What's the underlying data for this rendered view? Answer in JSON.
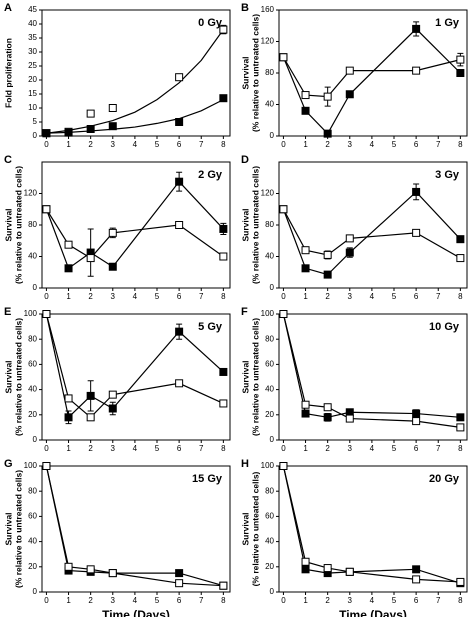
{
  "chart_data": [
    {
      "type": "line",
      "panel_label": "A",
      "annotation": "0 Gy",
      "ylabel": [
        "Fold proliferation"
      ],
      "x": [
        0,
        1,
        2,
        3,
        6,
        8
      ],
      "xlim": [
        -0.2,
        8.3
      ],
      "xticks": [
        0,
        1,
        2,
        3,
        4,
        5,
        6,
        7,
        8
      ],
      "ylim": [
        0,
        45
      ],
      "yticks": [
        0,
        5,
        10,
        15,
        20,
        25,
        30,
        35,
        40,
        45
      ],
      "series": [
        {
          "color": "#000000",
          "marker": "open",
          "line": false,
          "values": [
            1,
            1.5,
            8,
            10,
            21,
            38
          ],
          "errors": [
            null,
            null,
            null,
            null,
            null,
            1.5
          ]
        },
        {
          "color": "#000000",
          "marker": "filled",
          "line": false,
          "values": [
            1,
            1.2,
            2.5,
            3.5,
            5,
            13.5
          ],
          "errors": [
            null,
            null,
            null,
            null,
            null,
            null
          ]
        },
        {
          "color": "#000000",
          "marker": "none",
          "line": true,
          "x": [
            0,
            1,
            2,
            3,
            4,
            5,
            6,
            7,
            8
          ],
          "values": [
            1,
            2,
            3.5,
            5.5,
            8.5,
            13,
            19,
            27,
            38
          ]
        },
        {
          "color": "#000000",
          "marker": "none",
          "line": true,
          "x": [
            0,
            1,
            2,
            3,
            4,
            5,
            6,
            7,
            8
          ],
          "values": [
            1,
            1.3,
            1.8,
            2.4,
            3.2,
            4.5,
            6.2,
            9,
            13
          ]
        }
      ]
    },
    {
      "type": "line",
      "panel_label": "B",
      "annotation": "1 Gy",
      "ylabel": [
        "Survival",
        "(% relative to untreated cells)"
      ],
      "x": [
        0,
        1,
        2,
        3,
        6,
        8
      ],
      "xlim": [
        -0.2,
        8.3
      ],
      "xticks": [
        0,
        1,
        2,
        3,
        4,
        5,
        6,
        7,
        8
      ],
      "ylim": [
        0,
        160
      ],
      "yticks": [
        0,
        40,
        80,
        120,
        160
      ],
      "series": [
        {
          "color": "#000000",
          "marker": "filled",
          "line": true,
          "values": [
            100,
            32,
            3,
            53,
            136,
            80
          ],
          "errors": [
            null,
            null,
            null,
            null,
            9,
            null
          ]
        },
        {
          "color": "#000000",
          "marker": "open",
          "line": true,
          "values": [
            100,
            52,
            50,
            83,
            83,
            97
          ],
          "errors": [
            null,
            null,
            12,
            null,
            null,
            8
          ]
        }
      ]
    },
    {
      "type": "line",
      "panel_label": "C",
      "annotation": "2 Gy",
      "ylabel": [
        "Survival",
        "(% relative to untreated cells)"
      ],
      "x": [
        0,
        1,
        2,
        3,
        6,
        8
      ],
      "xlim": [
        -0.2,
        8.3
      ],
      "xticks": [
        0,
        1,
        2,
        3,
        4,
        5,
        6,
        7,
        8
      ],
      "ylim": [
        0,
        160
      ],
      "yticks": [
        0,
        40,
        80,
        120
      ],
      "series": [
        {
          "color": "#000000",
          "marker": "filled",
          "line": true,
          "values": [
            100,
            25,
            45,
            27,
            135,
            75
          ],
          "errors": [
            null,
            null,
            30,
            null,
            12,
            7
          ]
        },
        {
          "color": "#000000",
          "marker": "open",
          "line": true,
          "values": [
            100,
            55,
            38,
            70,
            80,
            40
          ],
          "errors": [
            null,
            null,
            null,
            6,
            null,
            null
          ]
        }
      ]
    },
    {
      "type": "line",
      "panel_label": "D",
      "annotation": "3 Gy",
      "ylabel": [
        "Survival",
        "(% relative to untreated cells)"
      ],
      "x": [
        0,
        1,
        2,
        3,
        6,
        8
      ],
      "xlim": [
        -0.2,
        8.3
      ],
      "xticks": [
        0,
        1,
        2,
        3,
        4,
        5,
        6,
        7,
        8
      ],
      "ylim": [
        0,
        160
      ],
      "yticks": [
        0,
        40,
        80,
        120
      ],
      "series": [
        {
          "color": "#000000",
          "marker": "filled",
          "line": true,
          "values": [
            100,
            25,
            17,
            45,
            122,
            62
          ],
          "errors": [
            null,
            null,
            null,
            6,
            10,
            null
          ]
        },
        {
          "color": "#000000",
          "marker": "open",
          "line": true,
          "values": [
            100,
            48,
            42,
            63,
            70,
            38
          ],
          "errors": [
            null,
            null,
            5,
            null,
            null,
            null
          ]
        }
      ]
    },
    {
      "type": "line",
      "panel_label": "E",
      "annotation": "5 Gy",
      "ylabel": [
        "Survival",
        "(% relative to untreated cells)"
      ],
      "x": [
        0,
        1,
        2,
        3,
        6,
        8
      ],
      "xlim": [
        -0.2,
        8.3
      ],
      "xticks": [
        0,
        1,
        2,
        3,
        4,
        5,
        6,
        7,
        8
      ],
      "ylim": [
        0,
        100
      ],
      "yticks": [
        0,
        20,
        40,
        60,
        80,
        100
      ],
      "series": [
        {
          "color": "#000000",
          "marker": "filled",
          "line": true,
          "values": [
            100,
            18,
            35,
            25,
            86,
            54
          ],
          "errors": [
            null,
            5,
            12,
            5,
            6,
            null
          ]
        },
        {
          "color": "#000000",
          "marker": "open",
          "line": true,
          "values": [
            100,
            33,
            18,
            36,
            45,
            29
          ],
          "errors": [
            null,
            null,
            null,
            null,
            null,
            null
          ]
        }
      ]
    },
    {
      "type": "line",
      "panel_label": "F",
      "annotation": "10 Gy",
      "ylabel": [
        "Survival",
        "(% relative to untreated cells)"
      ],
      "x": [
        0,
        1,
        2,
        3,
        6,
        8
      ],
      "xlim": [
        -0.2,
        8.3
      ],
      "xticks": [
        0,
        1,
        2,
        3,
        4,
        5,
        6,
        7,
        8
      ],
      "ylim": [
        0,
        100
      ],
      "yticks": [
        0,
        20,
        40,
        60,
        80,
        100
      ],
      "series": [
        {
          "color": "#000000",
          "marker": "filled",
          "line": true,
          "values": [
            100,
            21,
            18,
            22,
            21,
            18
          ],
          "errors": [
            null,
            null,
            3,
            null,
            3,
            null
          ]
        },
        {
          "color": "#000000",
          "marker": "open",
          "line": true,
          "values": [
            100,
            28,
            26,
            17,
            15,
            10
          ],
          "errors": [
            null,
            null,
            null,
            null,
            null,
            null
          ]
        }
      ]
    },
    {
      "type": "line",
      "panel_label": "G",
      "annotation": "15 Gy",
      "ylabel": [
        "Survival",
        "(% relative to untreated cells)"
      ],
      "x": [
        0,
        1,
        2,
        3,
        6,
        8
      ],
      "xlim": [
        -0.2,
        8.3
      ],
      "xticks": [
        0,
        1,
        2,
        3,
        4,
        5,
        6,
        7,
        8
      ],
      "ylim": [
        0,
        100
      ],
      "yticks": [
        0,
        20,
        40,
        60,
        80,
        100
      ],
      "xlabel": "Time (Days)",
      "series": [
        {
          "color": "#000000",
          "marker": "filled",
          "line": true,
          "values": [
            100,
            17,
            16,
            15,
            15,
            5
          ],
          "errors": [
            null,
            null,
            null,
            null,
            null,
            null
          ]
        },
        {
          "color": "#000000",
          "marker": "open",
          "line": true,
          "values": [
            100,
            20,
            18,
            15,
            7,
            5
          ],
          "errors": [
            null,
            null,
            null,
            null,
            null,
            null
          ]
        }
      ]
    },
    {
      "type": "line",
      "panel_label": "H",
      "annotation": "20 Gy",
      "ylabel": [
        "Survival",
        "(% relative to unteated cells)"
      ],
      "x": [
        0,
        1,
        2,
        3,
        6,
        8
      ],
      "xlim": [
        -0.2,
        8.3
      ],
      "xticks": [
        0,
        1,
        2,
        3,
        4,
        5,
        6,
        7,
        8
      ],
      "ylim": [
        0,
        100
      ],
      "yticks": [
        0,
        20,
        40,
        60,
        80,
        100
      ],
      "xlabel": "Time (Days)",
      "series": [
        {
          "color": "#000000",
          "marker": "filled",
          "line": true,
          "values": [
            100,
            18,
            15,
            16,
            18,
            7
          ],
          "errors": [
            null,
            null,
            null,
            null,
            null,
            null
          ]
        },
        {
          "color": "#000000",
          "marker": "open",
          "line": true,
          "values": [
            100,
            24,
            19,
            16,
            10,
            8
          ],
          "errors": [
            null,
            null,
            null,
            null,
            null,
            null
          ]
        }
      ]
    }
  ]
}
